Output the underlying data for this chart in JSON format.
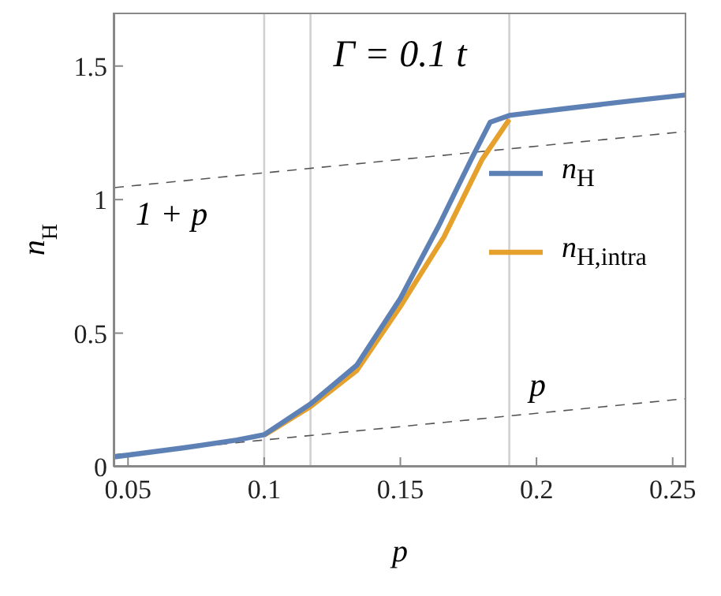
{
  "chart_data": {
    "type": "line",
    "title": "Γ = 0.1 t",
    "xlabel": "p",
    "ylabel": "n$_{H}$",
    "xlim": [
      0.0447,
      0.255
    ],
    "ylim": [
      0,
      1.7
    ],
    "xticks": [
      0.05,
      0.1,
      0.15,
      0.2,
      0.25
    ],
    "yticks": [
      0,
      0.5,
      1,
      1.5
    ],
    "legend": "right",
    "marker": "none",
    "ref_lines": [
      {
        "axis": "x",
        "value": 0.1,
        "color": "#d0d0d0"
      },
      {
        "axis": "x",
        "value": 0.117,
        "color": "#d0d0d0"
      },
      {
        "axis": "x",
        "value": 0.19,
        "color": "#d0d0d0"
      }
    ],
    "series": [
      {
        "name": "1 + p",
        "type": "line",
        "line_style": "dashed",
        "color": "#555555",
        "x": [
          0.045,
          0.255
        ],
        "values": [
          1.045,
          1.255
        ]
      },
      {
        "name": "p",
        "type": "line",
        "line_style": "dashed",
        "color": "#555555",
        "x": [
          0.045,
          0.255
        ],
        "values": [
          0.045,
          0.255
        ]
      },
      {
        "name": "n$_{H,intra}$",
        "color": "#e5a12b",
        "line_style": "solid",
        "x": [
          0.1,
          0.117,
          0.134,
          0.15,
          0.166,
          0.18,
          0.19
        ],
        "values": [
          0.118,
          0.225,
          0.36,
          0.6,
          0.86,
          1.15,
          1.3
        ]
      },
      {
        "name": "n$_{H}$",
        "color": "#5e81b5",
        "line_style": "solid",
        "x": [
          0.045,
          0.07,
          0.09,
          0.1,
          0.117,
          0.134,
          0.15,
          0.164,
          0.176,
          0.183,
          0.19,
          0.21,
          0.235,
          0.255
        ],
        "values": [
          0.037,
          0.07,
          0.1,
          0.12,
          0.235,
          0.38,
          0.63,
          0.9,
          1.15,
          1.29,
          1.315,
          1.34,
          1.37,
          1.392
        ]
      }
    ]
  }
}
